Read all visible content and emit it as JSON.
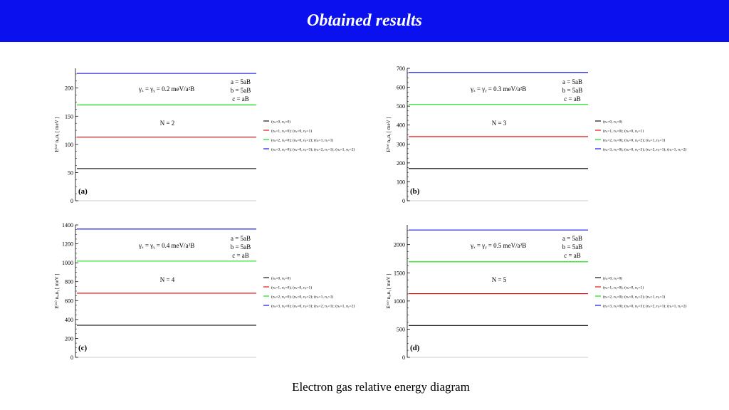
{
  "header": {
    "title": "Obtained results"
  },
  "caption": "Electron gas relative energy diagram",
  "legend_entries": [
    "(nₓ=0, nᵧ=0)",
    "(nₓ=1, nᵧ=0); (nₓ=0, nᵧ=1)",
    "(nₓ=2, nᵧ=0); (nₓ=0, nᵧ=2); (nₓ=1, nᵧ=1)",
    "(nₓ=3, nᵧ=0); (nₓ=0, nᵧ=3); (nₓ=2, nᵧ=1); (nₓ=1, nᵧ=2)"
  ],
  "colors": {
    "level_0": "#000000",
    "level_1": "#e00000",
    "level_2": "#00dd00",
    "level_3": "#0000dd",
    "title_bar": "#0a10ee"
  },
  "chart_data": [
    {
      "type": "line",
      "panel_label": "(a)",
      "ylabel": "E⁽ᵈʳ⁾ nₓ,nᵧ [ meV ]",
      "yticks": [
        0,
        50,
        100,
        150,
        200
      ],
      "ylim": [
        0,
        235
      ],
      "gamma_label": "γₓ = γᵧ = 0.2 meV/a²B",
      "params": [
        "a = 5aB",
        "b = 5aB",
        "c = aB"
      ],
      "n_label": "N = 2",
      "series": [
        {
          "name": "(nₓ=0, nᵧ=0)",
          "value": 57
        },
        {
          "name": "(nₓ=1, nᵧ=0); (nₓ=0, nᵧ=1)",
          "value": 113
        },
        {
          "name": "(nₓ=2, nᵧ=0); (nₓ=0, nᵧ=2); (nₓ=1, nᵧ=1)",
          "value": 170
        },
        {
          "name": "(nₓ=3, nᵧ=0); (nₓ=0, nᵧ=3); (nₓ=2, nᵧ=1); (nₓ=1, nᵧ=2)",
          "value": 226
        }
      ]
    },
    {
      "type": "line",
      "panel_label": "(b)",
      "ylabel": "E⁽ᵈʳ⁾ nₓ,nᵧ [ meV ]",
      "yticks": [
        0,
        100,
        200,
        300,
        400,
        500,
        600,
        700
      ],
      "ylim": [
        0,
        700
      ],
      "gamma_label": "γₓ = γᵧ = 0.3 meV/a²B",
      "params": [
        "a = 5aB",
        "b = 5aB",
        "c = aB"
      ],
      "n_label": "N = 3",
      "series": [
        {
          "name": "(nₓ=0, nᵧ=0)",
          "value": 170
        },
        {
          "name": "(nₓ=1, nᵧ=0); (nₓ=0, nᵧ=1)",
          "value": 339
        },
        {
          "name": "(nₓ=2, nᵧ=0); (nₓ=0, nᵧ=2); (nₓ=1, nᵧ=1)",
          "value": 509
        },
        {
          "name": "(nₓ=3, nᵧ=0); (nₓ=0, nᵧ=3); (nₓ=2, nᵧ=1); (nₓ=1, nᵧ=2)",
          "value": 678
        }
      ]
    },
    {
      "type": "line",
      "panel_label": "(c)",
      "ylabel": "E⁽ᵈʳ⁾ nₓ,nᵧ [ meV ]",
      "yticks": [
        0,
        200,
        400,
        600,
        800,
        1000,
        1200,
        1400
      ],
      "ylim": [
        0,
        1400
      ],
      "gamma_label": "γₓ = γᵧ = 0.4 meV/a²B",
      "params": [
        "a = 5aB",
        "b = 5aB",
        "c = aB"
      ],
      "n_label": "N = 4",
      "series": [
        {
          "name": "(nₓ=0, nᵧ=0)",
          "value": 339
        },
        {
          "name": "(nₓ=1, nᵧ=0); (nₓ=0, nᵧ=1)",
          "value": 678
        },
        {
          "name": "(nₓ=2, nᵧ=0); (nₓ=0, nᵧ=2); (nₓ=1, nᵧ=1)",
          "value": 1017
        },
        {
          "name": "(nₓ=3, nᵧ=0); (nₓ=0, nᵧ=3); (nₓ=2, nᵧ=1); (nₓ=1, nᵧ=2)",
          "value": 1356
        }
      ]
    },
    {
      "type": "line",
      "panel_label": "(d)",
      "ylabel": "E⁽ᵈʳ⁾ nₓ,nᵧ [ meV ]",
      "yticks": [
        0,
        500,
        1000,
        1500,
        2000
      ],
      "ylim": [
        0,
        2350
      ],
      "gamma_label": "γₓ = γᵧ = 0.5 meV/a²B",
      "params": [
        "a = 5aB",
        "b = 5aB",
        "c = aB"
      ],
      "n_label": "N = 5",
      "series": [
        {
          "name": "(nₓ=0, nᵧ=0)",
          "value": 565
        },
        {
          "name": "(nₓ=1, nᵧ=0); (nₓ=0, nᵧ=1)",
          "value": 1130
        },
        {
          "name": "(nₓ=2, nᵧ=0); (nₓ=0, nᵧ=2); (nₓ=1, nᵧ=1)",
          "value": 1695
        },
        {
          "name": "(nₓ=3, nᵧ=0); (nₓ=0, nᵧ=3); (nₓ=2, nᵧ=1); (nₓ=1, nᵧ=2)",
          "value": 2260
        }
      ]
    }
  ]
}
